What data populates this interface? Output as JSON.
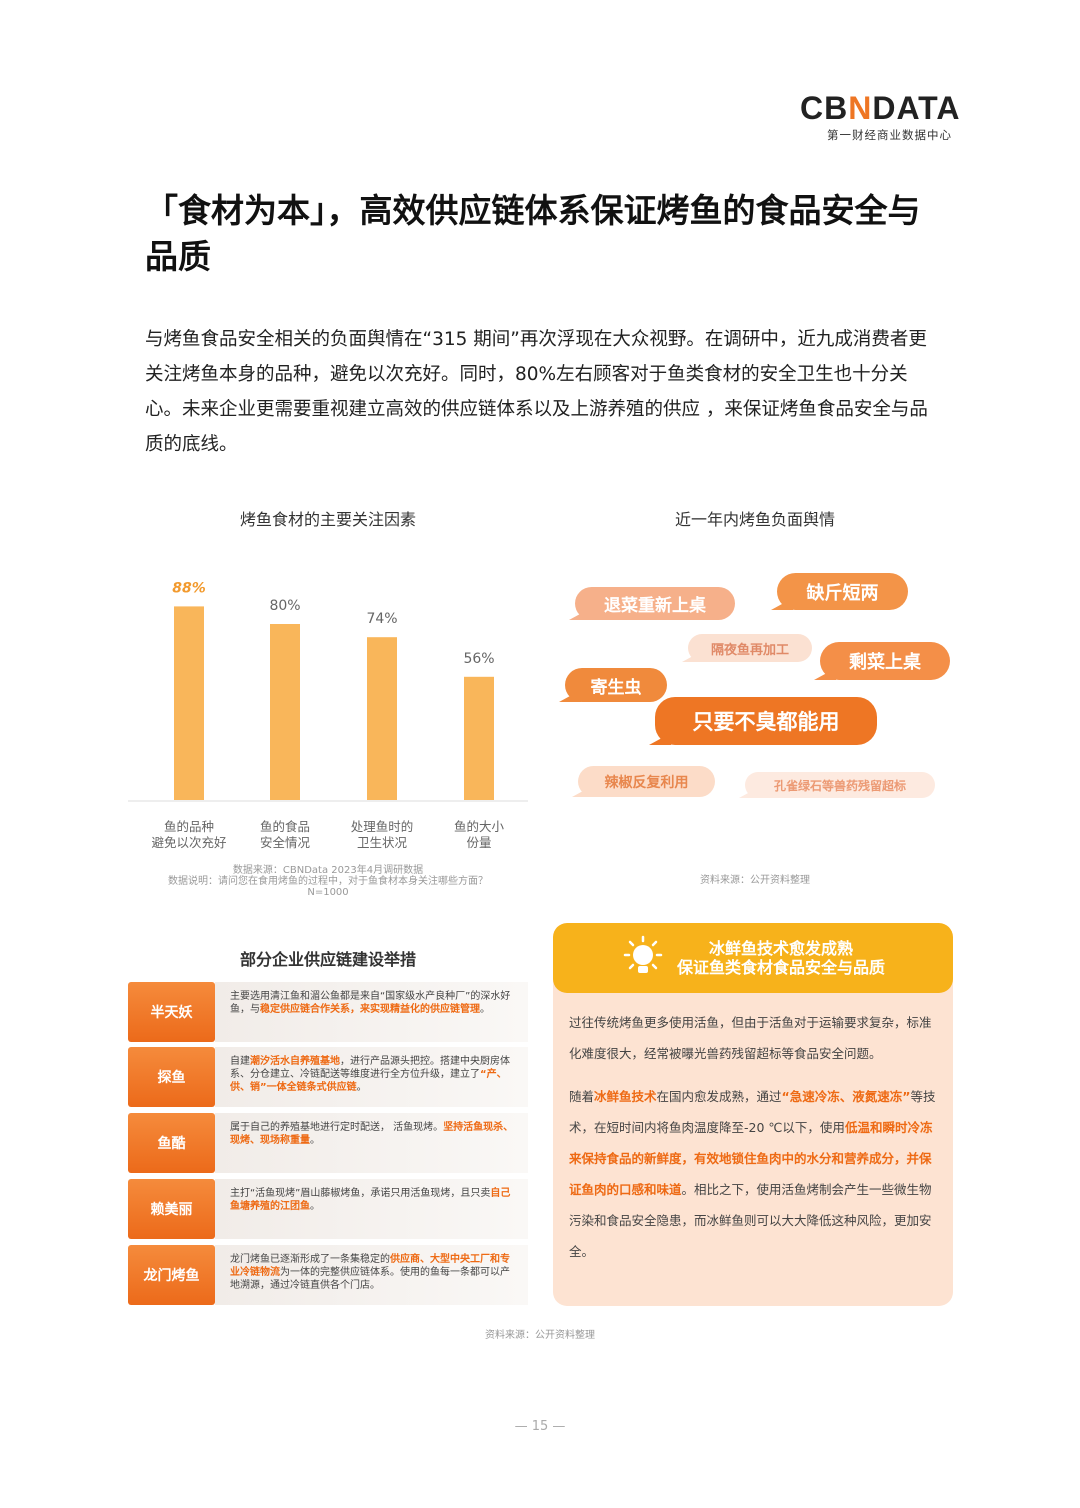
{
  "logo": {
    "brand_a": "CB",
    "brand_n": "N",
    "brand_b": "DATA",
    "subtitle": "第一财经商业数据中心"
  },
  "title": "「食材为本」，高效供应链体系保证烤鱼的食品安全与品质",
  "intro": "与烤鱼食品安全相关的负面舆情在“315 期间”再次浮现在大众视野。在调研中，近九成消费者更关注烤鱼本身的品种，避免以次充好。同时，80%左右顾客对于鱼类食材的安全卫生也十分关心。未来企业更需要重视建立高效的供应链体系以及上游养殖的供应 ，来保证烤鱼食品安全与品质的底线。",
  "chart_data": {
    "type": "bar",
    "title": "烤鱼食材的主要关注因素",
    "categories": [
      "鱼的品种\n避免以次充好",
      "鱼的食品\n安全情况",
      "处理鱼时的\n卫生状况",
      "鱼的大小\n份量"
    ],
    "values": [
      88,
      80,
      74,
      56
    ],
    "data_labels": [
      "88%",
      "80%",
      "74%",
      "56%"
    ],
    "ylim": [
      0,
      100
    ],
    "grid": false,
    "colors": {
      "bar": "#f9b65a",
      "highlight_label": "#f29a2e",
      "label": "#666666"
    },
    "source": "数据来源：CBNData 2023年4月调研数据",
    "note": "数据说明：请问您在食用烤鱼的过程中，对于鱼食材本身关注哪些方面？",
    "n": "N=1000"
  },
  "opinion": {
    "title": "近一年内烤鱼负面舆情",
    "bubbles": [
      "退菜重新上桌",
      "缺斤短两",
      "隔夜鱼再加工",
      "剩菜上桌",
      "寄生虫",
      "只要不臭都能用",
      "辣椒反复利用",
      "孔雀绿石等兽药残留超标"
    ],
    "source": "资料来源：公开资料整理"
  },
  "supply": {
    "title": "部分企业供应链建设举措",
    "rows": [
      {
        "label": "半天妖",
        "segments": [
          [
            "主要选用清江鱼和湄公鱼都是来自“国家级水产良种厂”的深水好鱼，与",
            0
          ],
          [
            "稳定供应链合作关系，来实现精益化的供应链管理",
            1
          ],
          [
            "。",
            0
          ]
        ]
      },
      {
        "label": "探鱼",
        "segments": [
          [
            "自建",
            0
          ],
          [
            "潮汐活水自养殖基地",
            1
          ],
          [
            "，进行产品源头把控。搭建中央厨房体系、分仓建立、冷链配送等维度进行全方位升级，建立了",
            0
          ],
          [
            "“产、供、销”一体全链条式供应链",
            1
          ],
          [
            "。",
            0
          ]
        ]
      },
      {
        "label": "鱼酷",
        "segments": [
          [
            "属于自己的养殖基地进行定时配送， 活鱼现烤。",
            0
          ],
          [
            "坚持活鱼现杀、现烤、现场称重量",
            1
          ],
          [
            "。",
            0
          ]
        ]
      },
      {
        "label": "赖美丽",
        "segments": [
          [
            "主打“活鱼现烤”眉山藤椒烤鱼，承诺只用活鱼现烤，且只卖",
            0
          ],
          [
            "自己鱼塘养殖的江团鱼",
            1
          ],
          [
            "。",
            0
          ]
        ]
      },
      {
        "label": "龙门烤鱼",
        "segments": [
          [
            "龙门烤鱼已逐渐形成了一条集稳定的",
            0
          ],
          [
            "供应商、大型中央工厂和专业冷链物流",
            1
          ],
          [
            "为一体的完整供应链体系。使用的鱼每一条都可以产地溯源，通过冷链直供各个门店。",
            0
          ]
        ]
      }
    ],
    "source": "资料来源：公开资料整理"
  },
  "panel": {
    "title_1": "冰鲜鱼技术愈发成熟",
    "title_2": "保证鱼类食材食品安全与品质",
    "icon": "lightbulb-icon",
    "paragraphs": [
      [
        [
          "过往传统烤鱼更多使用活鱼，但由于活鱼对于运输要求复杂，标准化难度很大，经常被曝光兽药残留超标等食品安全问题。",
          0
        ]
      ],
      [
        [
          "随着",
          0
        ],
        [
          "冰鲜鱼技术",
          1
        ],
        [
          "在国内愈发成熟，通过",
          0
        ],
        [
          "“急速冷冻、液氮速冻”",
          1
        ],
        [
          "等技术，在短时间内将鱼肉温度降至-20 ℃以下，使用",
          0
        ],
        [
          "低温和瞬时冷冻来保持食品的新鲜度，有效地锁住鱼肉中的水分和营养成分，并保证鱼肉的口感和味道",
          1
        ],
        [
          "。相比之下，使用活鱼烤制会产生一些微生物污染和食品安全隐患，而冰鲜鱼则可以大大降低这种风险，更加安全。",
          0
        ]
      ]
    ]
  },
  "page_number": "— 15 —",
  "colors": {
    "accent": "#ee7624",
    "yellow": "#f7b21b",
    "panel_bg": "#fde3d2"
  }
}
